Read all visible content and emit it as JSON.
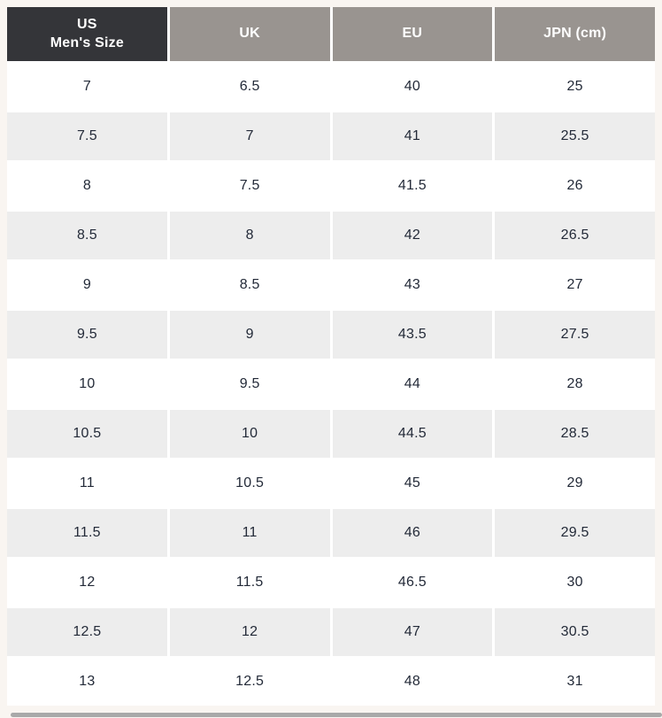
{
  "page": {
    "background": "#f9f5f1"
  },
  "colors": {
    "header_dark_bg": "#343539",
    "header_gray_bg": "#999490",
    "header_text": "#ffffff",
    "row_bg": "#ffffff",
    "row_alt_bg": "#ededed",
    "body_text": "#232a38",
    "scrollbar": "#a9a9a9"
  },
  "table": {
    "columns": [
      {
        "id": "us",
        "label": "US\nMen's Size"
      },
      {
        "id": "uk",
        "label": "UK"
      },
      {
        "id": "eu",
        "label": "EU"
      },
      {
        "id": "jpn",
        "label": "JPN (cm)"
      }
    ],
    "rows": [
      [
        "7",
        "6.5",
        "40",
        "25"
      ],
      [
        "7.5",
        "7",
        "41",
        "25.5"
      ],
      [
        "8",
        "7.5",
        "41.5",
        "26"
      ],
      [
        "8.5",
        "8",
        "42",
        "26.5"
      ],
      [
        "9",
        "8.5",
        "43",
        "27"
      ],
      [
        "9.5",
        "9",
        "43.5",
        "27.5"
      ],
      [
        "10",
        "9.5",
        "44",
        "28"
      ],
      [
        "10.5",
        "10",
        "44.5",
        "28.5"
      ],
      [
        "11",
        "10.5",
        "45",
        "29"
      ],
      [
        "11.5",
        "11",
        "46",
        "29.5"
      ],
      [
        "12",
        "11.5",
        "46.5",
        "30"
      ],
      [
        "12.5",
        "12",
        "47",
        "30.5"
      ],
      [
        "13",
        "12.5",
        "48",
        "31"
      ]
    ]
  }
}
